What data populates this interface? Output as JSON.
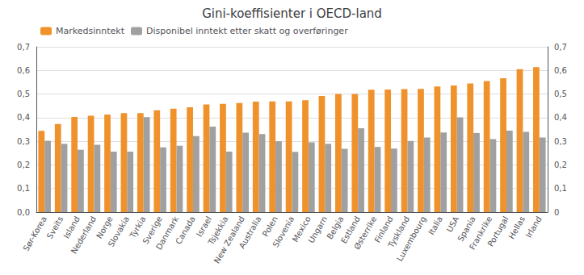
{
  "chart_data": {
    "type": "bar",
    "title": "Gini-koeffisienter i OECD-land",
    "categories": [
      "Sør-Korea",
      "Sveits",
      "Island",
      "Nederland",
      "Norge",
      "Slovakia",
      "Tyrkia",
      "Sverige",
      "Danmark",
      "Canada",
      "Israel",
      "Tsjekkia",
      "New Zealand",
      "Australia",
      "Polen",
      "Slovenia",
      "Mexico",
      "Ungarn",
      "Belgia",
      "Estland",
      "Østerrike",
      "Finland",
      "Tyskland",
      "Luxembourg",
      "Italia",
      "USA",
      "Spania",
      "Frankrike",
      "Portugal",
      "Hellas",
      "Irland"
    ],
    "series": [
      {
        "name": "Markedsinntekt",
        "color": "#F0922B",
        "values": [
          0.344,
          0.373,
          0.403,
          0.408,
          0.413,
          0.419,
          0.419,
          0.431,
          0.438,
          0.444,
          0.456,
          0.458,
          0.462,
          0.468,
          0.469,
          0.469,
          0.474,
          0.492,
          0.5,
          0.5,
          0.518,
          0.519,
          0.521,
          0.522,
          0.532,
          0.536,
          0.545,
          0.555,
          0.567,
          0.605,
          0.614
        ]
      },
      {
        "name": "Disponibel inntekt etter skatt og overføringer",
        "color": "#A0A0A0",
        "values": [
          0.302,
          0.289,
          0.264,
          0.285,
          0.256,
          0.256,
          0.402,
          0.274,
          0.281,
          0.322,
          0.362,
          0.256,
          0.336,
          0.33,
          0.3,
          0.255,
          0.295,
          0.289,
          0.268,
          0.355,
          0.276,
          0.269,
          0.301,
          0.316,
          0.337,
          0.401,
          0.335,
          0.309,
          0.345,
          0.34,
          0.316
        ]
      }
    ],
    "ylim": [
      0,
      0.7
    ],
    "yticks": [
      {
        "value": 0.0,
        "label": "0,0"
      },
      {
        "value": 0.1,
        "label": "0,1"
      },
      {
        "value": 0.2,
        "label": "0,2"
      },
      {
        "value": 0.3,
        "label": "0,3"
      },
      {
        "value": 0.4,
        "label": "0,4"
      },
      {
        "value": 0.5,
        "label": "0,5"
      },
      {
        "value": 0.6,
        "label": "0,6"
      },
      {
        "value": 0.7,
        "label": "0,7"
      }
    ],
    "y2lim": [
      0,
      0.7
    ],
    "y2ticks": [
      0,
      {
        "value": 0.1,
        "label": "0,1"
      },
      {
        "value": 0.2,
        "label": "0,2"
      },
      {
        "value": 0.3,
        "label": "0,3"
      },
      {
        "value": 0.4,
        "label": "0,4"
      },
      {
        "value": 0.5,
        "label": "0,5"
      },
      {
        "value": 0.6,
        "label": "0,6"
      },
      {
        "value": 0.7,
        "label": "0,7"
      }
    ],
    "grid": true,
    "legend": "upper left"
  }
}
